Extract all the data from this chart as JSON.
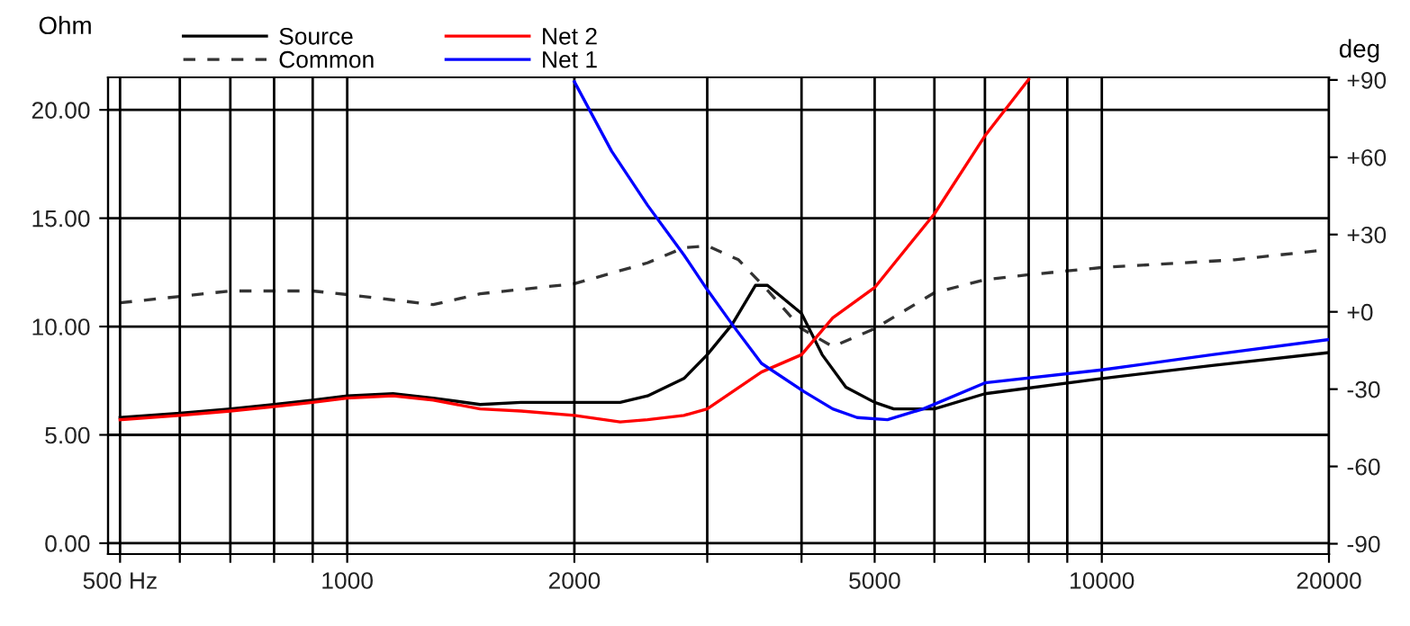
{
  "chart_data": {
    "type": "line",
    "ylabel": "Ohm",
    "y2label": "deg",
    "log": "x",
    "xlim": [
      482,
      20000
    ],
    "ylim": [
      -0.5,
      21.5
    ],
    "y2lim": [
      -94,
      91
    ],
    "xticks": [
      {
        "value": 500,
        "label": "500 Hz"
      },
      {
        "value": 600,
        "label": null
      },
      {
        "value": 700,
        "label": null
      },
      {
        "value": 800,
        "label": null
      },
      {
        "value": 900,
        "label": null
      },
      1000,
      2000,
      {
        "value": 3000,
        "label": null
      },
      {
        "value": 4000,
        "label": null
      },
      5000,
      {
        "value": 6000,
        "label": null
      },
      {
        "value": 7000,
        "label": null
      },
      {
        "value": 8000,
        "label": null
      },
      {
        "value": 9000,
        "label": null
      },
      10000,
      20000
    ],
    "yticks": [
      {
        "value": 0,
        "label": "0.00"
      },
      {
        "value": 5,
        "label": "5.00"
      },
      {
        "value": 10,
        "label": "10.00"
      },
      {
        "value": 15,
        "label": "15.00"
      },
      {
        "value": 20,
        "label": "20.00"
      }
    ],
    "y2ticks": [
      {
        "value": 90,
        "label": "+90"
      },
      {
        "value": 60,
        "label": "+60"
      },
      {
        "value": 30,
        "label": "+30"
      },
      {
        "value": 0,
        "label": "+0"
      },
      {
        "value": -30,
        "label": "-30"
      },
      {
        "value": -60,
        "label": "-60"
      },
      {
        "value": -90,
        "label": "-90"
      }
    ],
    "grid": true,
    "legend": "top",
    "series": [
      {
        "name": "Source",
        "color": "#000000",
        "line_style": "solid",
        "x": [
          500,
          600,
          700,
          800,
          900,
          1000,
          1150,
          1300,
          1500,
          1700,
          2000,
          2300,
          2500,
          2794,
          3000,
          3237,
          3475,
          3605,
          4000,
          4260,
          4580,
          5000,
          5300,
          6000,
          7000,
          10000,
          14000,
          20000
        ],
        "values": [
          5.8,
          6.0,
          6.2,
          6.4,
          6.6,
          6.8,
          6.9,
          6.7,
          6.4,
          6.5,
          6.5,
          6.5,
          6.8,
          7.6,
          8.7,
          10.1,
          11.9,
          11.9,
          10.6,
          8.7,
          7.2,
          6.5,
          6.2,
          6.2,
          6.9,
          7.6,
          8.2,
          8.8
        ]
      },
      {
        "name": "Common",
        "color": "#333333",
        "line_style": "dashed",
        "axis": "y2",
        "x": [
          500,
          700,
          900,
          1000,
          1300,
          1500,
          2000,
          2500,
          2794,
          3000,
          3300,
          3600,
          4000,
          4400,
          5000,
          6000,
          7000,
          8000,
          10000,
          15000,
          20000
        ],
        "values": [
          3.5,
          8.1,
          8.1,
          6.7,
          2.8,
          7,
          10.9,
          19,
          24.9,
          25.6,
          20.2,
          8.6,
          -6.5,
          -13.5,
          -6.5,
          7.4,
          12.5,
          14.4,
          17.2,
          20.2,
          24.2
        ]
      },
      {
        "name": "Net 2",
        "color": "#ff0000",
        "line_style": "solid",
        "x": [
          500,
          600,
          700,
          800,
          900,
          1000,
          1150,
          1300,
          1500,
          1700,
          2000,
          2300,
          2500,
          2794,
          3000,
          3540,
          4000,
          4400,
          5000,
          6000,
          7000,
          8000
        ],
        "values": [
          5.7,
          5.9,
          6.1,
          6.3,
          6.5,
          6.7,
          6.8,
          6.6,
          6.2,
          6.1,
          5.9,
          5.6,
          5.7,
          5.9,
          6.2,
          7.9,
          8.7,
          10.4,
          11.8,
          15.2,
          18.8,
          21.4
        ]
      },
      {
        "name": "Net 1",
        "color": "#0000ff",
        "line_style": "solid",
        "x": [
          2000,
          2240,
          2500,
          2794,
          3000,
          3237,
          3540,
          4030,
          4400,
          4740,
          5200,
          5800,
          7000,
          10000,
          14000,
          20000
        ],
        "values": [
          21.3,
          18.1,
          15.6,
          13.3,
          11.7,
          10.1,
          8.3,
          7.0,
          6.2,
          5.8,
          5.7,
          6.2,
          7.4,
          8.0,
          8.7,
          9.4
        ]
      }
    ]
  }
}
